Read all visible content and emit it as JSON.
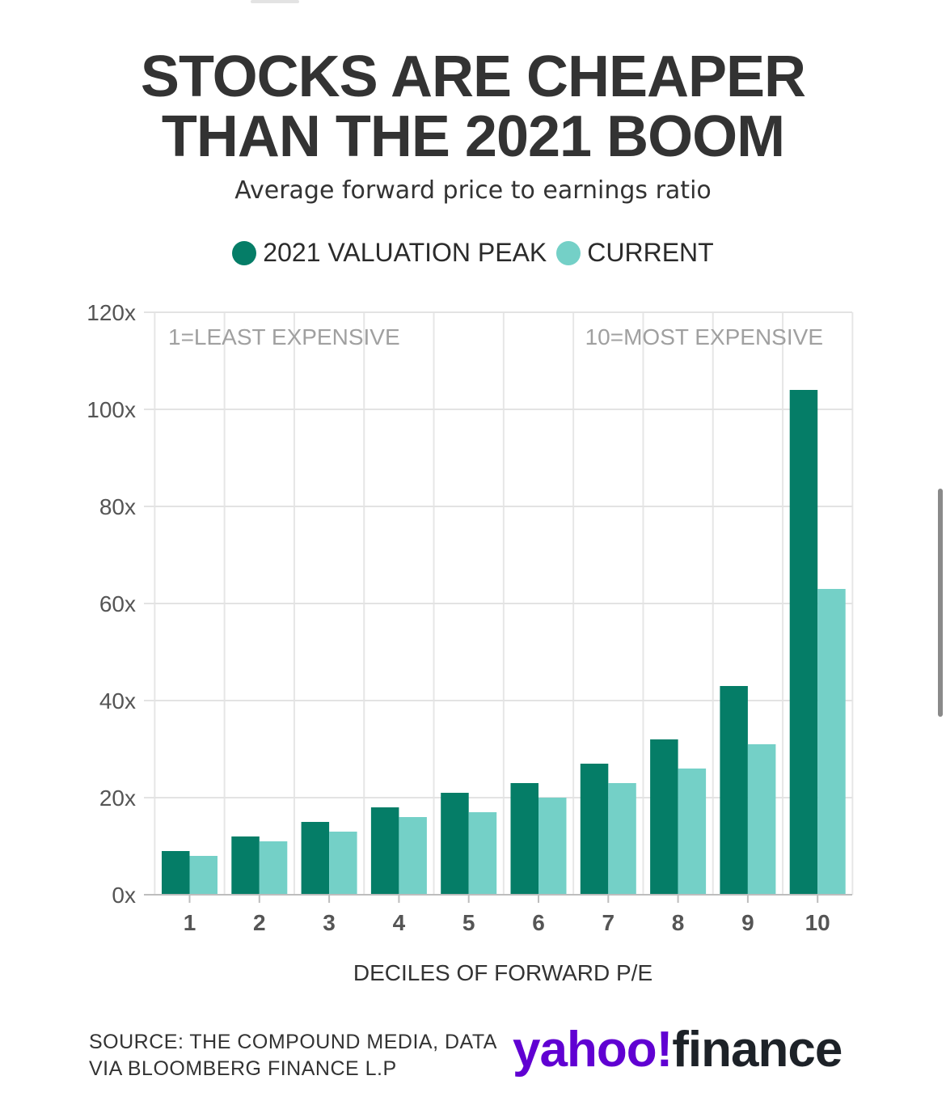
{
  "title_line1": "STOCKS ARE CHEAPER",
  "title_line2": "THAN THE 2021 BOOM",
  "subtitle": "Average forward price to earnings ratio",
  "legend": [
    {
      "label": "2021 VALUATION PEAK",
      "color": "#057d67"
    },
    {
      "label": "CURRENT",
      "color": "#74d0c7"
    }
  ],
  "source_line1": "SOURCE: THE COMPOUND MEDIA, DATA",
  "source_line2": "VIA BLOOMBERG FINANCE L.P",
  "logo": {
    "yahoo": "yahoo!",
    "finance": "finance"
  },
  "chart_data": {
    "type": "bar",
    "categories": [
      "1",
      "2",
      "3",
      "4",
      "5",
      "6",
      "7",
      "8",
      "9",
      "10"
    ],
    "series": [
      {
        "name": "2021 VALUATION PEAK",
        "color": "#057d67",
        "values": [
          9,
          12,
          15,
          18,
          21,
          23,
          27,
          32,
          43,
          104
        ]
      },
      {
        "name": "CURRENT",
        "color": "#74d0c7",
        "values": [
          8,
          11,
          13,
          16,
          17,
          20,
          23,
          26,
          31,
          63
        ]
      }
    ],
    "xlabel": "DECILES OF FORWARD P/E",
    "ylabel": "",
    "ylim": [
      0,
      120
    ],
    "yticks": [
      0,
      20,
      40,
      60,
      80,
      100,
      120
    ],
    "ytick_labels": [
      "0x",
      "20x",
      "40x",
      "60x",
      "80x",
      "100x",
      "120x"
    ],
    "annotations": [
      "1=LEAST EXPENSIVE",
      "10=MOST EXPENSIVE"
    ],
    "grid": true
  }
}
